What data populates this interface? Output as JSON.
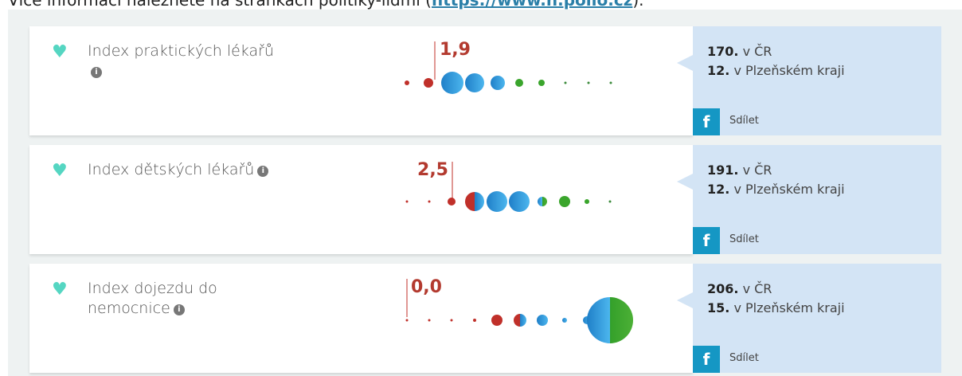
{
  "intro": {
    "text": "Více informací naleznete na stránkách politiky-lidmi",
    "link": "https://www.n.pollo.cz"
  },
  "rows": [
    {
      "name": "Index praktických lékařů",
      "value": "1,9",
      "rank_cr": "170.",
      "rank_cr_label": "v ČR",
      "rank_region": "12.",
      "rank_region_label": "v Plzeňském kraji",
      "share": "Sdílet"
    },
    {
      "name": "Index dětských lékařů",
      "value": "2,5",
      "rank_cr": "191.",
      "rank_cr_label": "v ČR",
      "rank_region": "12.",
      "rank_region_label": "v Plzeňském kraji",
      "share": "Sdílet"
    },
    {
      "name": "Index dojezdu do nemocnice",
      "value": "0,0",
      "rank_cr": "206.",
      "rank_cr_label": "v ČR",
      "rank_region": "15.",
      "rank_region_label": "v Plzeňském kraji",
      "share": "Sdílet"
    }
  ]
}
